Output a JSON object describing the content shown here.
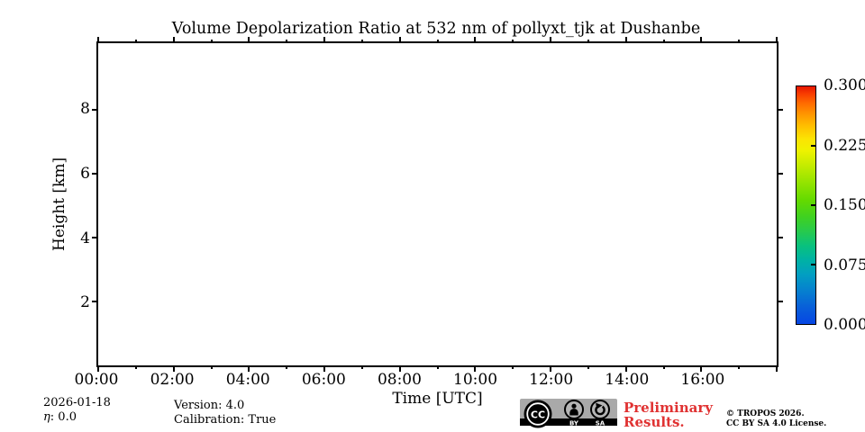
{
  "title": "Volume Depolarization Ratio at 532 nm of pollyxt_tjk at Dushanbe",
  "chart_data": {
    "type": "heatmap",
    "title": "Volume Depolarization Ratio at 532 nm of pollyxt_tjk at Dushanbe",
    "xlabel": "Time [UTC]",
    "ylabel": "Height [km]",
    "x_major_ticks": [
      "00:00",
      "02:00",
      "04:00",
      "06:00",
      "08:00",
      "10:00",
      "12:00",
      "14:00",
      "16:00"
    ],
    "x_range_hours": [
      0,
      18
    ],
    "x_minor_interval_hours": 1,
    "y_ticks": [
      "2",
      "4",
      "6",
      "8"
    ],
    "ylim": [
      0,
      10.1
    ],
    "grid": false,
    "series": [],
    "legend_position": "right",
    "colorbar": {
      "label_ticks": [
        "0.300",
        "0.225",
        "0.150",
        "0.075",
        "0.000"
      ],
      "range": [
        0.0,
        0.3
      ],
      "colormap_stops": [
        {
          "pos": 0,
          "color": "#0646e4"
        },
        {
          "pos": 7,
          "color": "#085fd9"
        },
        {
          "pos": 14,
          "color": "#0680cf"
        },
        {
          "pos": 21,
          "color": "#029fc1"
        },
        {
          "pos": 27,
          "color": "#00b2a4"
        },
        {
          "pos": 33,
          "color": "#09c17d"
        },
        {
          "pos": 39,
          "color": "#27ca4d"
        },
        {
          "pos": 45,
          "color": "#3fd121"
        },
        {
          "pos": 52,
          "color": "#63da00"
        },
        {
          "pos": 60,
          "color": "#97e400"
        },
        {
          "pos": 67,
          "color": "#c6ec00"
        },
        {
          "pos": 73,
          "color": "#eef200"
        },
        {
          "pos": 78,
          "color": "#fce303"
        },
        {
          "pos": 83,
          "color": "#ffc100"
        },
        {
          "pos": 88,
          "color": "#ff9900"
        },
        {
          "pos": 93,
          "color": "#ff6a00"
        },
        {
          "pos": 97,
          "color": "#f83b00"
        },
        {
          "pos": 100,
          "color": "#e61600"
        }
      ]
    }
  },
  "footer": {
    "date": "2026-01-18",
    "eta_symbol": "η",
    "eta_rest": ": 0.0",
    "version": "Version: 4.0",
    "calibration": "Calibration: True",
    "preliminary_line1": "Preliminary",
    "preliminary_line2": "Results.",
    "preliminary_color": "#e03232",
    "copyright_line1": "© TROPOS 2026.",
    "copyright_line2": "CC BY SA 4.0 License.",
    "cc_badge": {
      "cc": "CC",
      "by": "BY",
      "sa": "SA",
      "background": "#a9a9a9"
    }
  }
}
